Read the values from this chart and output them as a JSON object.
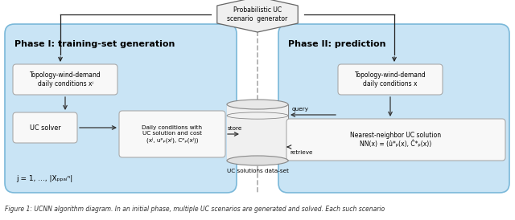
{
  "bg_color": "#ffffff",
  "phase1_title": "Phase I: training-set generation",
  "phase2_title": "Phase II: prediction",
  "caption": "Figure 1: UCNN algorithm diagram. In an initial phase, multiple UC scenarios are generated and solved. Each such scenario",
  "hexagon_label": "Probabilistic UC\nscenario  generator",
  "box_topo1_label": "Topology-wind-demand\ndaily conditions xʲ",
  "box_uc_label": "UC solver",
  "box_daily_label": "Daily conditions with\nUC solution and cost\n(xʲ, uᵖₚ(xʲ), Cᵖₚ(xʲ))",
  "box_db_label": "UC solutions data-set",
  "box_topo2_label": "Topology-wind-demand\ndaily conditions x",
  "box_nn_label": "Nearest-neighbor UC solution\nNN(x) = (û*ₚ(x), Ĉ*ₚ(x))",
  "j_label": "j = 1, ..., |Xₚₚₐᵢⁿ|",
  "store_label": "store",
  "query_label": "query",
  "retrieve_label": "retrieve",
  "phase_bg": "#c9e4f5",
  "phase_ec": "#7ab8d9",
  "box_fc": "#f8f8f8",
  "box_ec": "#aaaaaa",
  "arrow_color": "#333333",
  "dash_color": "#aaaaaa",
  "hex_fc": "#f0f0f0",
  "hex_ec": "#666666",
  "cyl_fc": "#f0f0f0",
  "cyl_ec": "#888888"
}
